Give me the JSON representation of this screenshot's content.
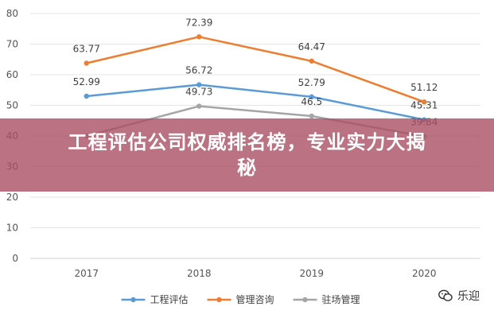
{
  "banner": {
    "title": "工程评估公司权威排名榜，专业实力大揭秘"
  },
  "watermark": {
    "text": "乐迎"
  },
  "colors": {
    "banner": "#aa5064",
    "grid": "#e6e6e6",
    "axis": "#d0d0d0"
  },
  "chart_data": {
    "type": "line",
    "categories": [
      "2017",
      "2018",
      "2019",
      "2020"
    ],
    "ylim": [
      0,
      80
    ],
    "yticks": [
      0,
      10,
      20,
      30,
      40,
      50,
      60,
      70,
      80
    ],
    "grid": true,
    "legend_position": "bottom",
    "series": [
      {
        "name": "工程评估",
        "color": "#5b9bd5",
        "values": [
          52.99,
          56.72,
          52.79,
          45.31
        ],
        "labels": [
          "52.99",
          "56.72",
          "52.79",
          "45.31"
        ]
      },
      {
        "name": "管理咨询",
        "color": "#ed7d31",
        "values": [
          63.77,
          72.39,
          64.47,
          51.12
        ],
        "labels": [
          "63.77",
          "72.39",
          "64.47",
          "51.12"
        ]
      },
      {
        "name": "驻场管理",
        "color": "#a5a5a5",
        "values": [
          40,
          49.73,
          46.5,
          39.84
        ],
        "labels": [
          "",
          "49.73",
          "46.5",
          "39.84"
        ]
      }
    ]
  }
}
